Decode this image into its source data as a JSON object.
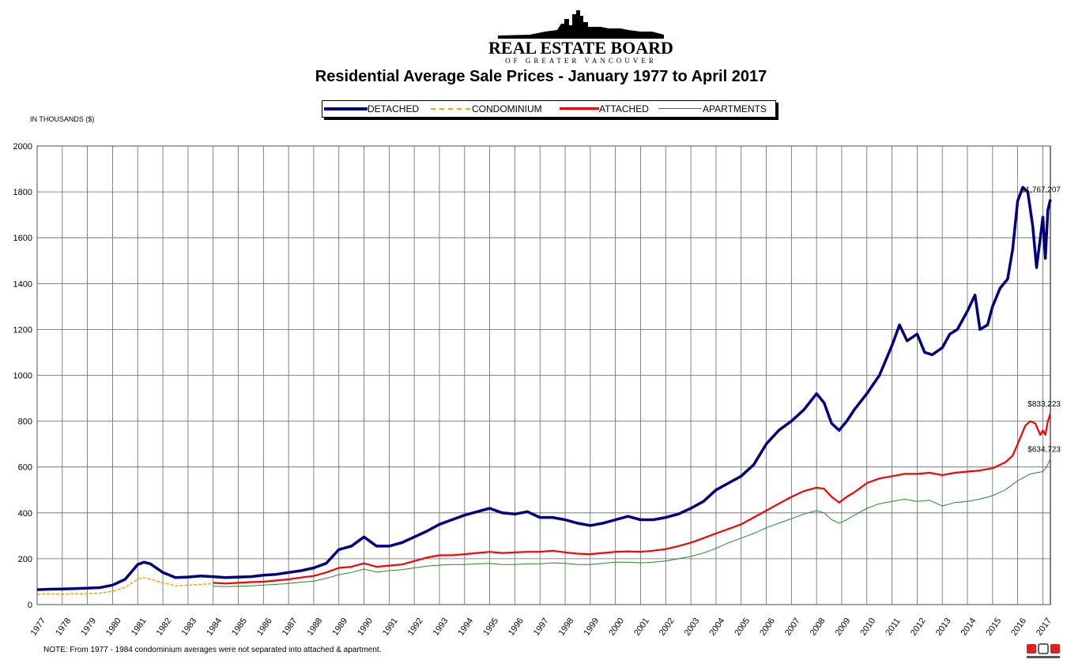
{
  "header": {
    "org_name": "REAL ESTATE BOARD",
    "org_sub": "OF GREATER VANCOUVER",
    "title": "Residential Average Sale Prices  -  January 1977 to April 2017"
  },
  "legend": {
    "detached": "DETACHED",
    "condominium": "CONDOMINIUM",
    "attached": "ATTACHED",
    "apartments": "APARTMENTS"
  },
  "unit_label": "IN THOUSANDS ($)",
  "note": "NOTE:  From 1977 - 1984 condominium averages were not separated into attached & apartment.",
  "colors": {
    "detached": "#000080",
    "condominium": "#ffa500",
    "attached": "#ff0000",
    "apartments": "#228b22"
  },
  "icons": {
    "logo": "skyline-logo-icon",
    "mls": "mls-logo-icon"
  },
  "chart_data": {
    "type": "line",
    "title": "Residential Average Sale Prices  -  January 1977 to April 2017",
    "ylabel": "IN THOUSANDS ($)",
    "xlabel": "",
    "ylim": [
      0,
      2000
    ],
    "yticks": [
      0,
      200,
      400,
      600,
      800,
      1000,
      1200,
      1400,
      1600,
      1800,
      2000
    ],
    "xlim": [
      1977,
      2017.3
    ],
    "xticks": [
      "1977",
      "1978",
      "1979",
      "1980",
      "1981",
      "1982",
      "1983",
      "1984",
      "1985",
      "1986",
      "1987",
      "1988",
      "1989",
      "1990",
      "1991",
      "1992",
      "1993",
      "1994",
      "1995",
      "1996",
      "1997",
      "1998",
      "1999",
      "2000",
      "2001",
      "2002",
      "2003",
      "2004",
      "2005",
      "2006",
      "2007",
      "2008",
      "2009",
      "2010",
      "2011",
      "2012",
      "2013",
      "2014",
      "2015",
      "2016",
      "2017"
    ],
    "grid": true,
    "legend_position": "top-center",
    "annotations": [
      {
        "text": "$1,767,207",
        "x": 2017.25,
        "y": 1767,
        "series": "DETACHED"
      },
      {
        "text": "$833,223",
        "x": 2017.25,
        "y": 833,
        "series": "ATTACHED"
      },
      {
        "text": "$634,723",
        "x": 2017.25,
        "y": 635,
        "series": "APARTMENTS"
      }
    ],
    "series": [
      {
        "name": "DETACHED",
        "points": [
          [
            1977.0,
            65
          ],
          [
            1977.5,
            67
          ],
          [
            1978.0,
            68
          ],
          [
            1978.5,
            70
          ],
          [
            1979.0,
            72
          ],
          [
            1979.5,
            74
          ],
          [
            1980.0,
            85
          ],
          [
            1980.5,
            110
          ],
          [
            1981.0,
            175
          ],
          [
            1981.25,
            185
          ],
          [
            1981.5,
            178
          ],
          [
            1982.0,
            140
          ],
          [
            1982.5,
            118
          ],
          [
            1983.0,
            120
          ],
          [
            1983.5,
            125
          ],
          [
            1984.0,
            122
          ],
          [
            1984.5,
            118
          ],
          [
            1985.0,
            120
          ],
          [
            1985.5,
            122
          ],
          [
            1986.0,
            128
          ],
          [
            1986.5,
            132
          ],
          [
            1987.0,
            140
          ],
          [
            1987.5,
            148
          ],
          [
            1988.0,
            160
          ],
          [
            1988.5,
            180
          ],
          [
            1989.0,
            240
          ],
          [
            1989.5,
            255
          ],
          [
            1990.0,
            295
          ],
          [
            1990.5,
            255
          ],
          [
            1991.0,
            255
          ],
          [
            1991.5,
            270
          ],
          [
            1992.0,
            295
          ],
          [
            1992.5,
            320
          ],
          [
            1993.0,
            350
          ],
          [
            1993.5,
            370
          ],
          [
            1994.0,
            390
          ],
          [
            1994.5,
            405
          ],
          [
            1995.0,
            420
          ],
          [
            1995.5,
            400
          ],
          [
            1996.0,
            395
          ],
          [
            1996.5,
            405
          ],
          [
            1997.0,
            380
          ],
          [
            1997.5,
            380
          ],
          [
            1998.0,
            370
          ],
          [
            1998.5,
            355
          ],
          [
            1999.0,
            345
          ],
          [
            1999.5,
            355
          ],
          [
            2000.0,
            370
          ],
          [
            2000.5,
            385
          ],
          [
            2001.0,
            370
          ],
          [
            2001.5,
            370
          ],
          [
            2002.0,
            380
          ],
          [
            2002.5,
            395
          ],
          [
            2003.0,
            420
          ],
          [
            2003.5,
            450
          ],
          [
            2004.0,
            500
          ],
          [
            2004.5,
            530
          ],
          [
            2005.0,
            560
          ],
          [
            2005.5,
            610
          ],
          [
            2006.0,
            700
          ],
          [
            2006.5,
            760
          ],
          [
            2007.0,
            800
          ],
          [
            2007.5,
            850
          ],
          [
            2008.0,
            920
          ],
          [
            2008.3,
            880
          ],
          [
            2008.6,
            790
          ],
          [
            2008.9,
            760
          ],
          [
            2009.2,
            800
          ],
          [
            2009.5,
            850
          ],
          [
            2010.0,
            920
          ],
          [
            2010.5,
            1000
          ],
          [
            2011.0,
            1130
          ],
          [
            2011.3,
            1220
          ],
          [
            2011.6,
            1150
          ],
          [
            2012.0,
            1180
          ],
          [
            2012.3,
            1100
          ],
          [
            2012.6,
            1090
          ],
          [
            2013.0,
            1120
          ],
          [
            2013.3,
            1180
          ],
          [
            2013.6,
            1200
          ],
          [
            2014.0,
            1280
          ],
          [
            2014.3,
            1350
          ],
          [
            2014.5,
            1200
          ],
          [
            2014.8,
            1220
          ],
          [
            2015.0,
            1300
          ],
          [
            2015.3,
            1380
          ],
          [
            2015.6,
            1420
          ],
          [
            2015.8,
            1550
          ],
          [
            2016.0,
            1760
          ],
          [
            2016.2,
            1820
          ],
          [
            2016.4,
            1800
          ],
          [
            2016.6,
            1650
          ],
          [
            2016.75,
            1470
          ],
          [
            2016.9,
            1600
          ],
          [
            2017.0,
            1690
          ],
          [
            2017.1,
            1510
          ],
          [
            2017.2,
            1720
          ],
          [
            2017.3,
            1767
          ]
        ]
      },
      {
        "name": "CONDOMINIUM",
        "points": [
          [
            1977.0,
            45
          ],
          [
            1977.5,
            47
          ],
          [
            1978.0,
            46
          ],
          [
            1978.5,
            48
          ],
          [
            1979.0,
            48
          ],
          [
            1979.5,
            50
          ],
          [
            1980.0,
            58
          ],
          [
            1980.5,
            75
          ],
          [
            1981.0,
            110
          ],
          [
            1981.25,
            118
          ],
          [
            1981.5,
            110
          ],
          [
            1982.0,
            95
          ],
          [
            1982.5,
            82
          ],
          [
            1983.0,
            85
          ],
          [
            1983.5,
            88
          ],
          [
            1984.0,
            92
          ]
        ]
      },
      {
        "name": "ATTACHED",
        "points": [
          [
            1984.0,
            95
          ],
          [
            1984.5,
            92
          ],
          [
            1985.0,
            95
          ],
          [
            1985.5,
            98
          ],
          [
            1986.0,
            100
          ],
          [
            1986.5,
            105
          ],
          [
            1987.0,
            110
          ],
          [
            1987.5,
            118
          ],
          [
            1988.0,
            125
          ],
          [
            1988.5,
            140
          ],
          [
            1989.0,
            160
          ],
          [
            1989.5,
            165
          ],
          [
            1990.0,
            180
          ],
          [
            1990.5,
            165
          ],
          [
            1991.0,
            170
          ],
          [
            1991.5,
            175
          ],
          [
            1992.0,
            190
          ],
          [
            1992.5,
            205
          ],
          [
            1993.0,
            215
          ],
          [
            1993.5,
            215
          ],
          [
            1994.0,
            220
          ],
          [
            1994.5,
            225
          ],
          [
            1995.0,
            230
          ],
          [
            1995.5,
            225
          ],
          [
            1996.0,
            228
          ],
          [
            1996.5,
            230
          ],
          [
            1997.0,
            230
          ],
          [
            1997.5,
            235
          ],
          [
            1998.0,
            228
          ],
          [
            1998.5,
            222
          ],
          [
            1999.0,
            220
          ],
          [
            1999.5,
            225
          ],
          [
            2000.0,
            230
          ],
          [
            2000.5,
            232
          ],
          [
            2001.0,
            230
          ],
          [
            2001.5,
            235
          ],
          [
            2002.0,
            242
          ],
          [
            2002.5,
            255
          ],
          [
            2003.0,
            270
          ],
          [
            2003.5,
            290
          ],
          [
            2004.0,
            310
          ],
          [
            2004.5,
            330
          ],
          [
            2005.0,
            350
          ],
          [
            2005.5,
            380
          ],
          [
            2006.0,
            410
          ],
          [
            2006.5,
            440
          ],
          [
            2007.0,
            470
          ],
          [
            2007.5,
            495
          ],
          [
            2008.0,
            510
          ],
          [
            2008.3,
            505
          ],
          [
            2008.6,
            470
          ],
          [
            2008.9,
            445
          ],
          [
            2009.2,
            470
          ],
          [
            2009.5,
            490
          ],
          [
            2010.0,
            530
          ],
          [
            2010.5,
            550
          ],
          [
            2011.0,
            560
          ],
          [
            2011.5,
            570
          ],
          [
            2012.0,
            570
          ],
          [
            2012.5,
            575
          ],
          [
            2013.0,
            565
          ],
          [
            2013.5,
            575
          ],
          [
            2014.0,
            580
          ],
          [
            2014.5,
            585
          ],
          [
            2015.0,
            595
          ],
          [
            2015.5,
            620
          ],
          [
            2015.8,
            650
          ],
          [
            2016.0,
            700
          ],
          [
            2016.3,
            780
          ],
          [
            2016.5,
            800
          ],
          [
            2016.7,
            790
          ],
          [
            2016.9,
            740
          ],
          [
            2017.0,
            760
          ],
          [
            2017.1,
            740
          ],
          [
            2017.2,
            800
          ],
          [
            2017.3,
            833
          ]
        ]
      },
      {
        "name": "APARTMENTS",
        "points": [
          [
            1984.0,
            80
          ],
          [
            1984.5,
            78
          ],
          [
            1985.0,
            80
          ],
          [
            1985.5,
            82
          ],
          [
            1986.0,
            85
          ],
          [
            1986.5,
            88
          ],
          [
            1987.0,
            92
          ],
          [
            1987.5,
            98
          ],
          [
            1988.0,
            102
          ],
          [
            1988.5,
            115
          ],
          [
            1989.0,
            130
          ],
          [
            1989.5,
            140
          ],
          [
            1990.0,
            155
          ],
          [
            1990.5,
            142
          ],
          [
            1991.0,
            148
          ],
          [
            1991.5,
            152
          ],
          [
            1992.0,
            160
          ],
          [
            1992.5,
            168
          ],
          [
            1993.0,
            172
          ],
          [
            1993.5,
            175
          ],
          [
            1994.0,
            175
          ],
          [
            1994.5,
            178
          ],
          [
            1995.0,
            180
          ],
          [
            1995.5,
            175
          ],
          [
            1996.0,
            175
          ],
          [
            1996.5,
            178
          ],
          [
            1997.0,
            178
          ],
          [
            1997.5,
            182
          ],
          [
            1998.0,
            180
          ],
          [
            1998.5,
            175
          ],
          [
            1999.0,
            175
          ],
          [
            1999.5,
            180
          ],
          [
            2000.0,
            185
          ],
          [
            2000.5,
            185
          ],
          [
            2001.0,
            182
          ],
          [
            2001.5,
            185
          ],
          [
            2002.0,
            190
          ],
          [
            2002.5,
            200
          ],
          [
            2003.0,
            210
          ],
          [
            2003.5,
            225
          ],
          [
            2004.0,
            245
          ],
          [
            2004.5,
            270
          ],
          [
            2005.0,
            290
          ],
          [
            2005.5,
            310
          ],
          [
            2006.0,
            335
          ],
          [
            2006.5,
            355
          ],
          [
            2007.0,
            375
          ],
          [
            2007.5,
            395
          ],
          [
            2008.0,
            410
          ],
          [
            2008.3,
            400
          ],
          [
            2008.6,
            370
          ],
          [
            2008.9,
            355
          ],
          [
            2009.2,
            370
          ],
          [
            2009.5,
            390
          ],
          [
            2010.0,
            420
          ],
          [
            2010.5,
            440
          ],
          [
            2011.0,
            450
          ],
          [
            2011.5,
            460
          ],
          [
            2012.0,
            450
          ],
          [
            2012.5,
            455
          ],
          [
            2013.0,
            430
          ],
          [
            2013.5,
            445
          ],
          [
            2014.0,
            450
          ],
          [
            2014.5,
            460
          ],
          [
            2015.0,
            475
          ],
          [
            2015.5,
            500
          ],
          [
            2016.0,
            540
          ],
          [
            2016.5,
            570
          ],
          [
            2016.75,
            575
          ],
          [
            2017.0,
            580
          ],
          [
            2017.15,
            600
          ],
          [
            2017.3,
            635
          ]
        ]
      }
    ]
  }
}
